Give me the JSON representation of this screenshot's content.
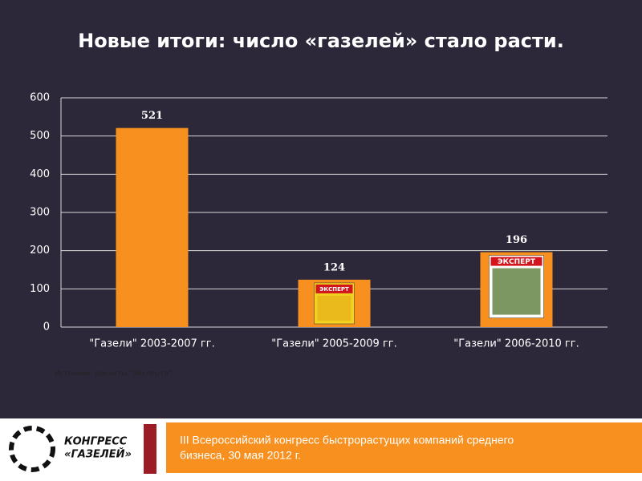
{
  "chart_data": {
    "type": "bar",
    "title": "Новые итоги: число «газелей» стало расти.",
    "categories": [
      "\"Газели\" 2003-2007 гг.",
      "\"Газели\" 2005-2009 гг.",
      "\"Газели\" 2006-2010 гг."
    ],
    "values": [
      521,
      124,
      196
    ],
    "color": "#f7901e",
    "ylim": [
      0,
      600
    ],
    "yticks": [
      0,
      100,
      200,
      300,
      400,
      500,
      600
    ],
    "grid": true,
    "source": "Источник: расчеты \"Эксперта\""
  },
  "covers": [
    "ЭКСПЕРТ",
    "ЭКСПЕРТ"
  ],
  "footer": {
    "logo": [
      "КОНГРЕСС",
      "«ГАЗЕЛЕЙ»"
    ],
    "text": [
      "III Всероссийский конгресс быстрорастущих компаний среднего",
      "бизнеса, 30 мая 2012 г."
    ]
  }
}
